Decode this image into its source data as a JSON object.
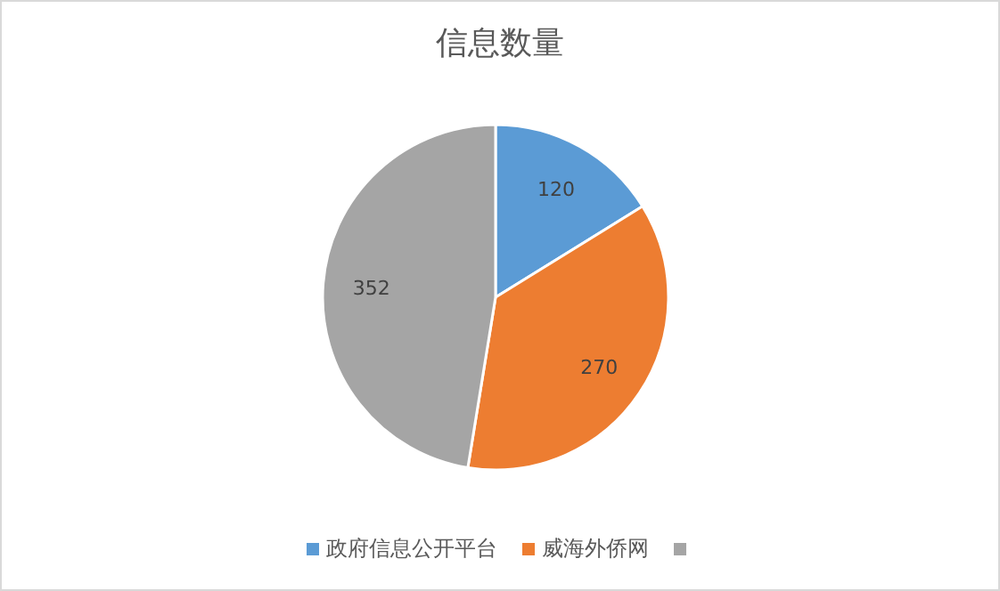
{
  "chart_data": {
    "type": "pie",
    "title": "信息数量",
    "categories": [
      "政府信息公开平台",
      "威海外侨网",
      null
    ],
    "values": [
      120,
      270,
      352
    ],
    "colors": [
      "#5b9bd5",
      "#ed7d31",
      "#a5a5a5"
    ],
    "data_labels": true,
    "legend": "bottom"
  }
}
